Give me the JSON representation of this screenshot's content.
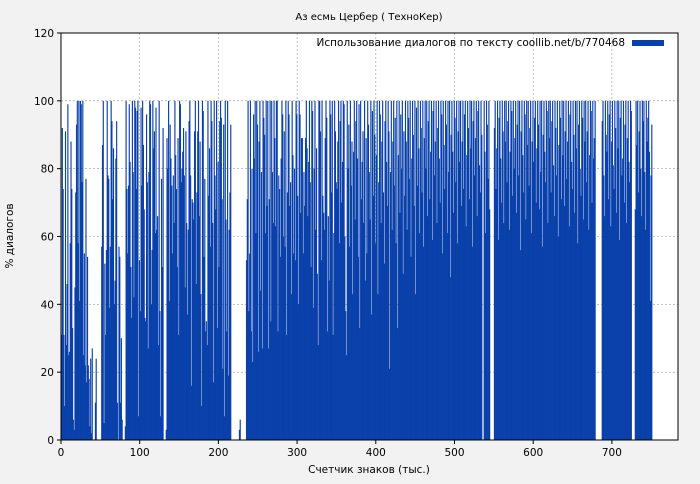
{
  "chart_data": {
    "type": "bar",
    "title": "Аз есмь Цербер ( ТехноКер)",
    "xlabel": "Счетчик знаков (тыс.)",
    "ylabel": "% диалогов",
    "xlim": [
      0,
      784
    ],
    "ylim": [
      0,
      120
    ],
    "xticks": [
      0,
      100,
      200,
      300,
      400,
      500,
      600,
      700
    ],
    "yticks": [
      0,
      20,
      40,
      60,
      80,
      100,
      120
    ],
    "grid": true,
    "legend_position": "top-right",
    "series": [
      {
        "name": "Использование диалогов по тексту coollib.net/b/770468",
        "color": "#0a40aa",
        "x_step": 1,
        "values": [
          31,
          92,
          74,
          31,
          10,
          91,
          28,
          46,
          99,
          25,
          26,
          58,
          88,
          74,
          33,
          6,
          3,
          45,
          73,
          93,
          100,
          58,
          100,
          41,
          100,
          99,
          76,
          100,
          25,
          55,
          22,
          77,
          17,
          54,
          22,
          18,
          4,
          24,
          2,
          27,
          0,
          0,
          0,
          11,
          24,
          0,
          0,
          0,
          0,
          0,
          0,
          57,
          87,
          100,
          5,
          52,
          31,
          56,
          100,
          78,
          77,
          39,
          57,
          100,
          94,
          71,
          86,
          40,
          47,
          83,
          94,
          11,
          0,
          57,
          54,
          11,
          30,
          6,
          0,
          0,
          0,
          4,
          100,
          74,
          55,
          75,
          99,
          82,
          51,
          36,
          100,
          79,
          42,
          100,
          98,
          74,
          97,
          100,
          7,
          53,
          38,
          98,
          75,
          100,
          87,
          68,
          36,
          35,
          96,
          76,
          27,
          79,
          100,
          99,
          40,
          56,
          100,
          86,
          91,
          61,
          98,
          62,
          66,
          28,
          100,
          38,
          7,
          77,
          51,
          92,
          0,
          0,
          0,
          3,
          89,
          80,
          100,
          41,
          93,
          83,
          75,
          55,
          78,
          64,
          100,
          84,
          74,
          51,
          89,
          31,
          100,
          99,
          76,
          80,
          85,
          92,
          78,
          45,
          91,
          64,
          37,
          62,
          94,
          100,
          78,
          16,
          71,
          70,
          65,
          91,
          100,
          46,
          73,
          91,
          100,
          66,
          88,
          43,
          10,
          100,
          97,
          54,
          77,
          32,
          35,
          28,
          100,
          72,
          86,
          57,
          100,
          94,
          64,
          17,
          100,
          78,
          68,
          100,
          33,
          82,
          51,
          94,
          100,
          95,
          71,
          21,
          93,
          7,
          100,
          65,
          32,
          100,
          19,
          62,
          73,
          93,
          0,
          0,
          0,
          0,
          0,
          0,
          0,
          0,
          0,
          0,
          3,
          6,
          0,
          0,
          0,
          0,
          0,
          0,
          0,
          53,
          71,
          100,
          38,
          55,
          100,
          32,
          80,
          23,
          96,
          83,
          100,
          61,
          100,
          93,
          26,
          88,
          100,
          44,
          79,
          27,
          100,
          95,
          90,
          61,
          100,
          69,
          100,
          27,
          71,
          100,
          35,
          100,
          79,
          64,
          100,
          89,
          63,
          100,
          100,
          32,
          78,
          74,
          54,
          83,
          100,
          96,
          60,
          91,
          57,
          100,
          31,
          73,
          100,
          96,
          69,
          76,
          43,
          100,
          84,
          55,
          80,
          53,
          100,
          96,
          72,
          40,
          100,
          96,
          67,
          89,
          89,
          55,
          79,
          69,
          89,
          100,
          86,
          66,
          82,
          100,
          76,
          51,
          100,
          97,
          39,
          80,
          100,
          62,
          86,
          49,
          28,
          100,
          100,
          91,
          53,
          100,
          72,
          67,
          62,
          89,
          100,
          95,
          32,
          66,
          47,
          100,
          96,
          73,
          100,
          31,
          61,
          100,
          91,
          76,
          74,
          88,
          100,
          58,
          94,
          100,
          70,
          82,
          100,
          99,
          60,
          38,
          25,
          100,
          80,
          93,
          57,
          100,
          75,
          88,
          43,
          85,
          100,
          65,
          94,
          100,
          83,
          54,
          99,
          33,
          100,
          71,
          82,
          91,
          64,
          100,
          47,
          89,
          55,
          100,
          93,
          79,
          65,
          100,
          37,
          97,
          72,
          100,
          90,
          58,
          84,
          100,
          43,
          76,
          100,
          96,
          64,
          88,
          100,
          73,
          52,
          94,
          100,
          82,
          69,
          100,
          91,
          21,
          79,
          100,
          62,
          88,
          100,
          75,
          95,
          58,
          100,
          33,
          84,
          100,
          67,
          96,
          80,
          100,
          49,
          91,
          72,
          100,
          88,
          62,
          100,
          95,
          77,
          100,
          54,
          83,
          100,
          90,
          69,
          100,
          43,
          98,
          75,
          100,
          86,
          61,
          100,
          92,
          73,
          100,
          57,
          89,
          100,
          80,
          100,
          66,
          94,
          100,
          71,
          85,
          100,
          59,
          97,
          100,
          78,
          88,
          100,
          64,
          92,
          100,
          83,
          70,
          100,
          96,
          55,
          100,
          87,
          74,
          100,
          93,
          61,
          100,
          79,
          100,
          48,
          90,
          100,
          85,
          67,
          100,
          95,
          76,
          100,
          58,
          91,
          100,
          82,
          100,
          69,
          88,
          100,
          74,
          96,
          100,
          63,
          84,
          100,
          92,
          71,
          100,
          86,
          100,
          57,
          94,
          100,
          78,
          89,
          100,
          66,
          97,
          100,
          81,
          73,
          100,
          90,
          0,
          0,
          100,
          85,
          61,
          100,
          93,
          77,
          100,
          68,
          0,
          0,
          0,
          0,
          0,
          92,
          100,
          74,
          86,
          100,
          59,
          95,
          100,
          83,
          70,
          100,
          91,
          64,
          100,
          88,
          100,
          76,
          94,
          100,
          62,
          85,
          100,
          97,
          72,
          100,
          80,
          89,
          100,
          67,
          93,
          100,
          78,
          100,
          56,
          91,
          100,
          84,
          73,
          100,
          96,
          65,
          100,
          87,
          100,
          75,
          92,
          100,
          61,
          88,
          100,
          82,
          95,
          100,
          70,
          86,
          100,
          93,
          68,
          100,
          79,
          100,
          57,
          90,
          100,
          85,
          76,
          100,
          97,
          64,
          100,
          89,
          100,
          73,
          94,
          100,
          81,
          66,
          100,
          92,
          78,
          100,
          60,
          87,
          100,
          95,
          71,
          100,
          84,
          100,
          69,
          91,
          100,
          77,
          88,
          100,
          63,
          96,
          100,
          82,
          74,
          100,
          90,
          67,
          100,
          86,
          100,
          58,
          93,
          100,
          80,
          72,
          100,
          95,
          65,
          100,
          88,
          100,
          76,
          91,
          100,
          62,
          84,
          100,
          97,
          70,
          100,
          83,
          89,
          100,
          0,
          0,
          0,
          0,
          0,
          0,
          0,
          0,
          94,
          100,
          78,
          66,
          100,
          90,
          85,
          100,
          71,
          96,
          100,
          63,
          88,
          100,
          81,
          74,
          100,
          92,
          67,
          100,
          86,
          100,
          59,
          95,
          100,
          78,
          83,
          100,
          70,
          93,
          100,
          64,
          89,
          100,
          82,
          76,
          100,
          97,
          0,
          0,
          0,
          0,
          68,
          100,
          87,
          100,
          73,
          91,
          100,
          80,
          66,
          100,
          94,
          100,
          79,
          62,
          100,
          88,
          95,
          100,
          85,
          41,
          78,
          93
        ]
      }
    ]
  }
}
